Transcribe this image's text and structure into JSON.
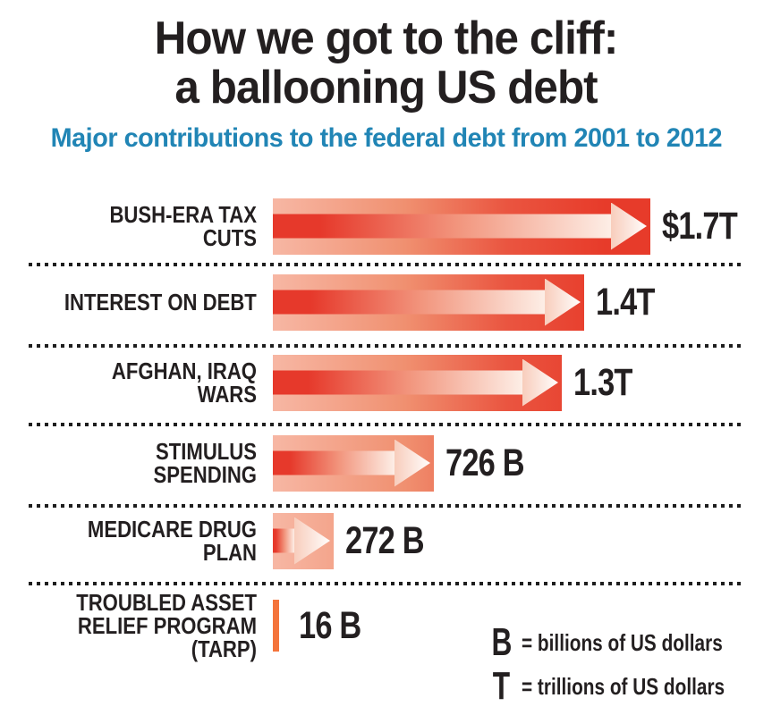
{
  "title": {
    "line1": "How we got to the cliff:",
    "line2": "a ballooning US debt"
  },
  "subtitle": "Major contributions to the federal debt from 2001 to 2012",
  "legend": [
    {
      "symbol": "B",
      "meaning": "= billions of US dollars"
    },
    {
      "symbol": "T",
      "meaning": "= trillions of US dollars"
    }
  ],
  "colors": {
    "bar_red": "#e73b2a",
    "bar_pale": "#f7b7a4",
    "arrow_white": "#fdf2ec",
    "tarp_orange": "#f4743b",
    "subtitle_blue": "#2185b5",
    "text_black": "#231f20"
  },
  "chart_data": {
    "type": "bar",
    "orientation": "horizontal",
    "title": "How we got to the cliff: a ballooning US debt",
    "subtitle": "Major contributions to the federal debt from 2001 to 2012",
    "unit": "US dollars",
    "xlim_billions": [
      0,
      1700
    ],
    "grid": false,
    "legend_position": "bottom-right",
    "categories": [
      "BUSH-ERA TAX CUTS",
      "INTEREST ON DEBT",
      "AFGHAN, IRAQ WARS",
      "STIMULUS SPENDING",
      "MEDICARE DRUG PLAN",
      "TROUBLED ASSET RELIEF PROGRAM (TARP)"
    ],
    "values_billions": [
      1700,
      1400,
      1300,
      726,
      272,
      16
    ],
    "value_labels": [
      "$1.7T",
      "1.4T",
      "1.3T",
      "726 B",
      "272 B",
      "16 B"
    ],
    "rows": [
      {
        "label_lines": [
          "BUSH-ERA TAX CUTS"
        ],
        "value_billions": 1700,
        "value_label": "$1.7T",
        "bar_style": "arrow"
      },
      {
        "label_lines": [
          "INTEREST ON DEBT"
        ],
        "value_billions": 1400,
        "value_label": "1.4T",
        "bar_style": "arrow"
      },
      {
        "label_lines": [
          "AFGHAN, IRAQ WARS"
        ],
        "value_billions": 1300,
        "value_label": "1.3T",
        "bar_style": "arrow"
      },
      {
        "label_lines": [
          "STIMULUS SPENDING"
        ],
        "value_billions": 726,
        "value_label": "726 B",
        "bar_style": "arrow"
      },
      {
        "label_lines": [
          "MEDICARE DRUG PLAN"
        ],
        "value_billions": 272,
        "value_label": "272 B",
        "bar_style": "arrow"
      },
      {
        "label_lines": [
          "TROUBLED ASSET",
          "RELIEF PROGRAM (TARP)"
        ],
        "value_billions": 16,
        "value_label": "16 B",
        "bar_style": "line"
      }
    ]
  }
}
